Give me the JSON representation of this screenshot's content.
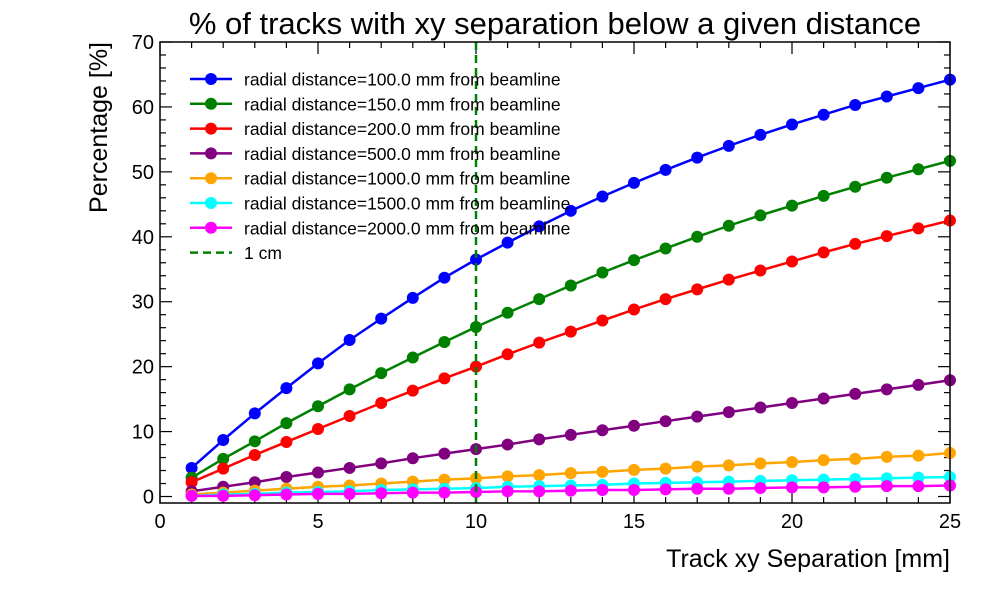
{
  "chart_data": {
    "type": "line",
    "title": "% of tracks with  xy separation below a given distance",
    "xlabel": "Track xy Separation [mm]",
    "ylabel": "Percentage [%]",
    "xlim": [
      0,
      25
    ],
    "ylim": [
      -1,
      70
    ],
    "xticks": [
      0,
      5,
      10,
      15,
      20,
      25
    ],
    "yticks": [
      0,
      10,
      20,
      30,
      40,
      50,
      60,
      70
    ],
    "grid": false,
    "legend_position": "top-left",
    "x": [
      1,
      2,
      3,
      4,
      5,
      6,
      7,
      8,
      9,
      10,
      11,
      12,
      13,
      14,
      15,
      16,
      17,
      18,
      19,
      20,
      21,
      22,
      23,
      24,
      25
    ],
    "series": [
      {
        "name": "radial distance=100.0 mm from beamline",
        "color": "#0000ff",
        "values": [
          4.4,
          8.7,
          12.8,
          16.7,
          20.5,
          24.1,
          27.4,
          30.6,
          33.7,
          36.5,
          39.1,
          41.6,
          44.0,
          46.2,
          48.3,
          50.3,
          52.2,
          54.0,
          55.7,
          57.3,
          58.8,
          60.3,
          61.6,
          62.9,
          64.2
        ]
      },
      {
        "name": "radial distance=150.0 mm from beamline",
        "color": "#008000",
        "values": [
          2.9,
          5.8,
          8.5,
          11.3,
          13.9,
          16.5,
          19.0,
          21.4,
          23.8,
          26.1,
          28.3,
          30.4,
          32.5,
          34.5,
          36.4,
          38.2,
          40.0,
          41.7,
          43.3,
          44.8,
          46.3,
          47.7,
          49.1,
          50.4,
          51.7
        ]
      },
      {
        "name": "radial distance=200.0 mm from beamline",
        "color": "#ff0000",
        "values": [
          2.2,
          4.3,
          6.4,
          8.4,
          10.4,
          12.4,
          14.4,
          16.3,
          18.2,
          20.0,
          21.9,
          23.7,
          25.4,
          27.1,
          28.8,
          30.4,
          31.9,
          33.4,
          34.8,
          36.2,
          37.6,
          38.9,
          40.1,
          41.3,
          42.5
        ]
      },
      {
        "name": "radial distance=500.0 mm from beamline",
        "color": "#800080",
        "values": [
          0.8,
          1.5,
          2.2,
          3.0,
          3.7,
          4.4,
          5.1,
          5.9,
          6.6,
          7.3,
          8.0,
          8.8,
          9.5,
          10.2,
          10.9,
          11.6,
          12.3,
          13.0,
          13.7,
          14.4,
          15.1,
          15.8,
          16.5,
          17.2,
          17.9
        ]
      },
      {
        "name": "radial distance=1000.0 mm from beamline",
        "color": "#ffa500",
        "values": [
          0.3,
          0.6,
          0.9,
          1.2,
          1.5,
          1.7,
          2.0,
          2.3,
          2.6,
          2.8,
          3.1,
          3.3,
          3.6,
          3.8,
          4.1,
          4.3,
          4.6,
          4.8,
          5.1,
          5.3,
          5.6,
          5.8,
          6.1,
          6.3,
          6.7
        ]
      },
      {
        "name": "radial distance=1500.0 mm from beamline",
        "color": "#00ffff",
        "values": [
          0.1,
          0.3,
          0.4,
          0.6,
          0.7,
          0.8,
          1.0,
          1.1,
          1.2,
          1.3,
          1.5,
          1.6,
          1.7,
          1.8,
          2.0,
          2.1,
          2.2,
          2.3,
          2.4,
          2.5,
          2.6,
          2.7,
          2.8,
          2.9,
          3.0
        ]
      },
      {
        "name": "radial distance=2000.0 mm from beamline",
        "color": "#ff00ff",
        "values": [
          0.1,
          0.1,
          0.2,
          0.3,
          0.4,
          0.4,
          0.5,
          0.6,
          0.6,
          0.7,
          0.8,
          0.8,
          0.9,
          1.0,
          1.0,
          1.1,
          1.2,
          1.2,
          1.3,
          1.4,
          1.4,
          1.5,
          1.6,
          1.6,
          1.7
        ]
      }
    ],
    "vline": {
      "name": "1 cm",
      "x": 10,
      "color": "#008000",
      "style": "dashed"
    }
  }
}
